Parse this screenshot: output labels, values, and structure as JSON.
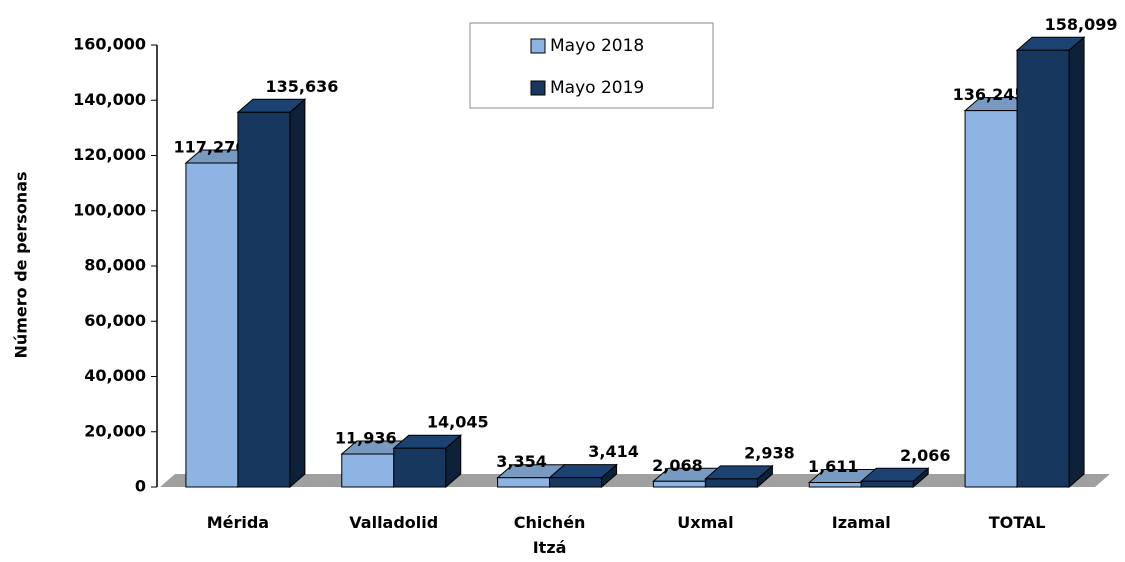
{
  "chart_data": {
    "type": "bar3d",
    "y_label": "Número de personas",
    "categories": [
      "Mérida",
      "Valladolid",
      "Chichén Itzá",
      "Uxmal",
      "Izamal",
      "TOTAL"
    ],
    "series": [
      {
        "name": "Mayo 2018",
        "color": "#8db4e2",
        "values": [
          117276,
          11936,
          3354,
          2068,
          1611,
          136245
        ],
        "value_labels": [
          "117,276",
          "11,936",
          "3,354",
          "2,068",
          "1,611",
          "136,245"
        ]
      },
      {
        "name": "Mayo 2019",
        "color": "#17375e",
        "values": [
          135636,
          14045,
          3414,
          2938,
          2066,
          158099
        ],
        "value_labels": [
          "135,636",
          "14,045",
          "3,414",
          "2,938",
          "2,066",
          "158,099"
        ]
      }
    ],
    "ylim": [
      0,
      160000
    ],
    "yticks": [
      0,
      {
        "value": 20000,
        "label": "20,000"
      },
      {
        "value": 40000,
        "label": "40,000"
      },
      {
        "value": 60000,
        "label": "60,000"
      },
      {
        "value": 80000,
        "label": "80,000"
      },
      {
        "value": 100000,
        "label": "100,000"
      },
      {
        "value": 120000,
        "label": "120,000"
      },
      {
        "value": 140000,
        "label": "140,000"
      },
      {
        "value": 160000,
        "label": "160,000"
      }
    ],
    "legend": "top"
  }
}
